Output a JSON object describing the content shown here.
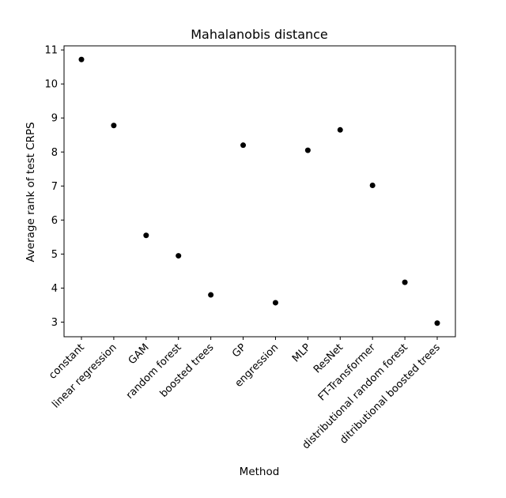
{
  "chart_data": {
    "type": "scatter",
    "title": "Mahalanobis distance",
    "xlabel": "Method",
    "ylabel": "Average rank of test CRPS",
    "categories": [
      "constant",
      "linear regression",
      "GAM",
      "random forest",
      "boosted trees",
      "GP",
      "engression",
      "MLP",
      "ResNet",
      "FT-Transformer",
      "distributional random forest",
      "ditributional boosted trees"
    ],
    "values": [
      10.72,
      8.78,
      5.55,
      4.95,
      3.8,
      8.2,
      3.57,
      8.05,
      8.65,
      7.02,
      4.17,
      2.97
    ],
    "ylim": [
      2.57,
      11.12
    ],
    "yticks": [
      3,
      4,
      5,
      6,
      7,
      8,
      9,
      10,
      11
    ],
    "grid": false,
    "marker_color": "#000000"
  }
}
